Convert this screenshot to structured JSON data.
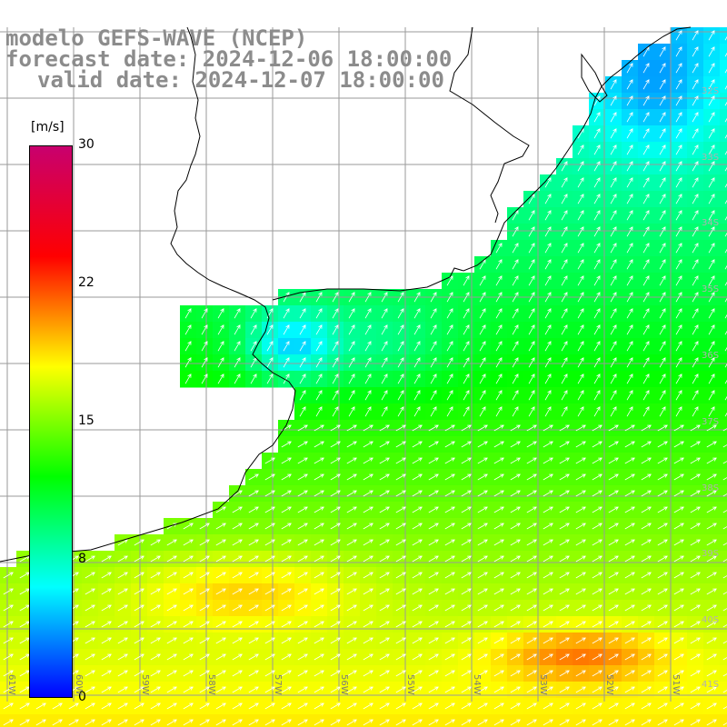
{
  "title": {
    "line1": "modelo GEFS-WAVE (NCEP)",
    "line2": "forecast date: 2024-12-06 18:00:00",
    "line3": "valid date: 2024-12-07 18:00:00"
  },
  "colorbar": {
    "unit": "[m/s]",
    "min": 0,
    "max": 30,
    "ticks": [
      "30",
      "22",
      "15",
      "8",
      "0"
    ],
    "tick_values": [
      30,
      22,
      15,
      8,
      0
    ],
    "colors": [
      "#0000ff",
      "#00ffff",
      "#00ff00",
      "#ffff00",
      "#ff0000",
      "#c8006e"
    ]
  },
  "grid": {
    "lat_labels": [
      "32S",
      "33S",
      "34S",
      "35S",
      "36S",
      "37S",
      "38S",
      "39S",
      "40S",
      "41S"
    ],
    "lon_labels": [
      "61W",
      "60W",
      "59W",
      "58W",
      "57W",
      "56W",
      "55W",
      "54W",
      "53W",
      "52W",
      "51W"
    ]
  },
  "colors": {
    "land": "#ffffff",
    "coast": "#000000",
    "grid": "#999999",
    "arrow": "#ffffff",
    "title": "#8c8c8c"
  }
}
